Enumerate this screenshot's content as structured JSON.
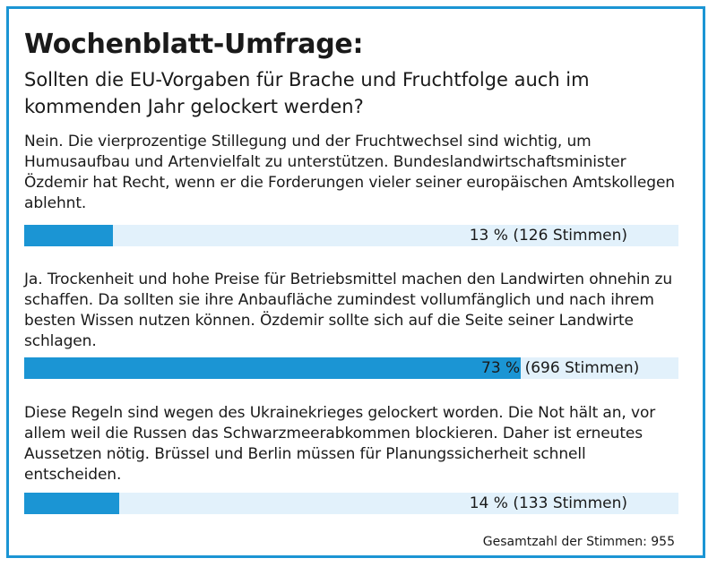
{
  "title": "Wochenblatt-Umfrage:",
  "question": "Sollten die EU-Vorgaben für Brache und Fruchtfolge auch im kommenden Jahr gelockert werden?",
  "colors": {
    "accent": "#1b95d4",
    "track": "#e2f1fb",
    "text": "#1a1a1a"
  },
  "chart_data": {
    "type": "bar",
    "orientation": "horizontal",
    "categories": [
      "Nein. Die vierprozentige Stillegung und der Fruchtwechsel sind wichtig, um Humusaufbau und Artenvielfalt zu unterstützen. Bundeslandwirtschafts­minister Özdemir hat Recht, wenn er die Forderungen vieler seiner euro­päischen Amtskollegen ablehnt.",
      "Ja. Trockenheit und hohe Preise für Betriebsmittel machen den Landwirten ohnehin zu schaffen. Da sollten sie ihre Anbaufläche zumindest vollumfäng­lich und nach ihrem besten Wissen nutzen können. Özdemir sollte sich auf die Seite seiner Landwirte schlagen.",
      "Diese Regeln sind wegen des Ukrainekrieges gelockert worden. Die Not hält an, vor allem weil die Russen das Schwarzmeerabkommen blockieren. Daher ist erneutes Aussetzen nötig. Brüssel und Berlin müssen für Planungssicher­heit schnell entscheiden."
    ],
    "values": [
      13,
      73,
      14
    ],
    "percent_labels": [
      "13 %",
      "73 %",
      "14 %"
    ],
    "votes": [
      126,
      696,
      133
    ],
    "vote_labels": [
      "(126 Stimmen)",
      "(696 Stimmen)",
      "(133 Stimmen)"
    ],
    "xlim": [
      0,
      100
    ],
    "total_label": "Gesamtzahl der Stimmen: 955",
    "total_votes": 955
  }
}
